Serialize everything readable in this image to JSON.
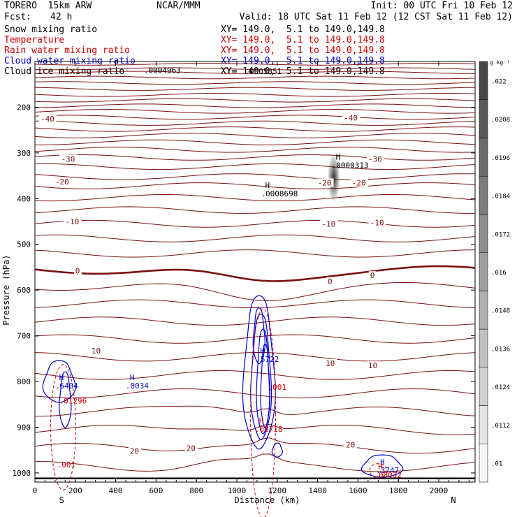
{
  "header": {
    "model": "TORERO  15km ARW",
    "center": "NCAR/MMM",
    "init": "Init: 00 UTC Fri 10 Feb 12",
    "fcst_label": "Fcst:",
    "fcst_value": "42 h",
    "valid": "Valid: 18 UTC Sat 11 Feb 12 (12 CST Sat 11 Feb 12)"
  },
  "fields": [
    {
      "name": "Snow mixing ratio",
      "xy": "XY= 149.0,  5.1 to 149.0,149.8",
      "color": "#000000"
    },
    {
      "name": "Temperature",
      "xy": "XY= 149.0,  5.1 to 149.0,149.8",
      "color": "#cc0000"
    },
    {
      "name": "Rain water mixing ratio",
      "xy": "XY= 149.0,  5.1 to 149.0,149.8",
      "color": "#cc0000"
    },
    {
      "name": "Cloud water mixing ratio",
      "xy": "XY= 149.0,  5.1 to 149.0,149.8",
      "color": "#0000cc"
    },
    {
      "name": "Cloud ice mixing ratio",
      "xy": "XY= 149.0,  5.1 to 149.0,149.8",
      "color": "#000000"
    }
  ],
  "chart_data": {
    "type": "contour-cross-section",
    "xlabel": "Distance (km)",
    "ylabel": "Pressure (hPa)",
    "xlim": [
      0,
      2180
    ],
    "ylim": [
      1020,
      100
    ],
    "x_ticks": [
      0,
      200,
      400,
      600,
      800,
      1000,
      1200,
      1400,
      1600,
      1800,
      2000
    ],
    "x_tick_labels": [
      "0",
      "200",
      "400",
      "600",
      "800",
      "1000",
      "1200",
      "1400",
      "1600",
      "1800",
      "2000"
    ],
    "y_ticks": [
      200,
      300,
      400,
      500,
      600,
      700,
      800,
      900,
      1000
    ],
    "y_tick_labels": [
      "200",
      "300",
      "400",
      "500",
      "600",
      "700",
      "800",
      "900",
      "1000"
    ],
    "end_labels": {
      "left": "S",
      "right": "N"
    },
    "colorbar": {
      "unit": "g kg⁻¹",
      "labels": [
        ".01",
        ".0112",
        ".0124",
        ".0136",
        ".0148",
        ".016",
        ".0172",
        ".0184",
        ".0196",
        ".0208",
        ".022"
      ],
      "levels": [
        0.01,
        0.0112,
        0.0124,
        0.0136,
        0.0148,
        0.016,
        0.0172,
        0.0184,
        0.0196,
        0.0208,
        0.022,
        0.0232
      ]
    },
    "temperature_labels": [
      {
        "text": "-40",
        "x": -20,
        "y": 225,
        "pmin": false
      },
      {
        "text": "-40",
        "x": 1530,
        "y": 223,
        "pmin": false
      },
      {
        "text": "-30",
        "x": 130,
        "y": 313,
        "pmin": false
      },
      {
        "text": "-30",
        "x": 1650,
        "y": 313,
        "pmin": false
      },
      {
        "text": "-20",
        "x": 100,
        "y": 363,
        "pmin": false
      },
      {
        "text": "-20",
        "x": 1400,
        "y": 365,
        "pmin": false
      },
      {
        "text": "-20",
        "x": 1570,
        "y": 365,
        "pmin": false
      },
      {
        "text": "-10",
        "x": 150,
        "y": 450,
        "pmin": false
      },
      {
        "text": "-10",
        "x": 1420,
        "y": 455,
        "pmin": false
      },
      {
        "text": "-10",
        "x": 1660,
        "y": 452,
        "pmin": false
      },
      {
        "text": "0",
        "x": 200,
        "y": 558,
        "pmin": false
      },
      {
        "text": "0",
        "x": 1450,
        "y": 581,
        "pmin": false
      },
      {
        "text": "0",
        "x": 1660,
        "y": 568,
        "pmin": false
      },
      {
        "text": "10",
        "x": 280,
        "y": 733,
        "pmin": false
      },
      {
        "text": "10",
        "x": 1440,
        "y": 760,
        "pmin": false
      },
      {
        "text": "10",
        "x": 1650,
        "y": 765,
        "pmin": false
      },
      {
        "text": "20",
        "x": 470,
        "y": 952,
        "pmin": false
      },
      {
        "text": "20",
        "x": 750,
        "y": 946,
        "pmin": false
      },
      {
        "text": "20",
        "x": 1540,
        "y": 938,
        "pmin": false
      }
    ],
    "extrema_labels": [
      {
        "h": "",
        "value": ".0004963",
        "x": 560,
        "y": 110,
        "color": "#000000"
      },
      {
        "h": "",
        "value": ".0005351",
        "x": 1060,
        "y": 112,
        "color": "#000000"
      },
      {
        "h": "H",
        "value": ".0008698",
        "x": 1140,
        "y": 380,
        "color": "#000000"
      },
      {
        "h": "H",
        "value": ".0000313",
        "x": 1490,
        "y": 318,
        "color": "#000000"
      },
      {
        "h": "H",
        "value": ".6404",
        "x": 120,
        "y": 800,
        "color": "#0000cc"
      },
      {
        "h": "H",
        "value": ".0034",
        "x": 470,
        "y": 800,
        "color": "#0000cc"
      },
      {
        "h": "H",
        "value": ".5722",
        "x": 1115,
        "y": 742,
        "color": "#0000cc"
      },
      {
        "h": "H",
        "value": ".3747",
        "x": 1710,
        "y": 985,
        "color": "#0000cc"
      },
      {
        "h": "",
        "value": ".01296",
        "x": 140,
        "y": 833,
        "color": "#cc0000"
      },
      {
        "h": "",
        "value": ".001",
        "x": 130,
        "y": 973,
        "color": "#cc0000"
      },
      {
        "h": "",
        "value": ".001",
        "x": 1175,
        "y": 803,
        "color": "#cc0000"
      },
      {
        "h": "H",
        "value": ".08718",
        "x": 1110,
        "y": 895,
        "color": "#cc0000"
      },
      {
        "h": "H",
        "value": ".00032",
        "x": 1700,
        "y": 995,
        "color": "#cc0000"
      }
    ]
  }
}
